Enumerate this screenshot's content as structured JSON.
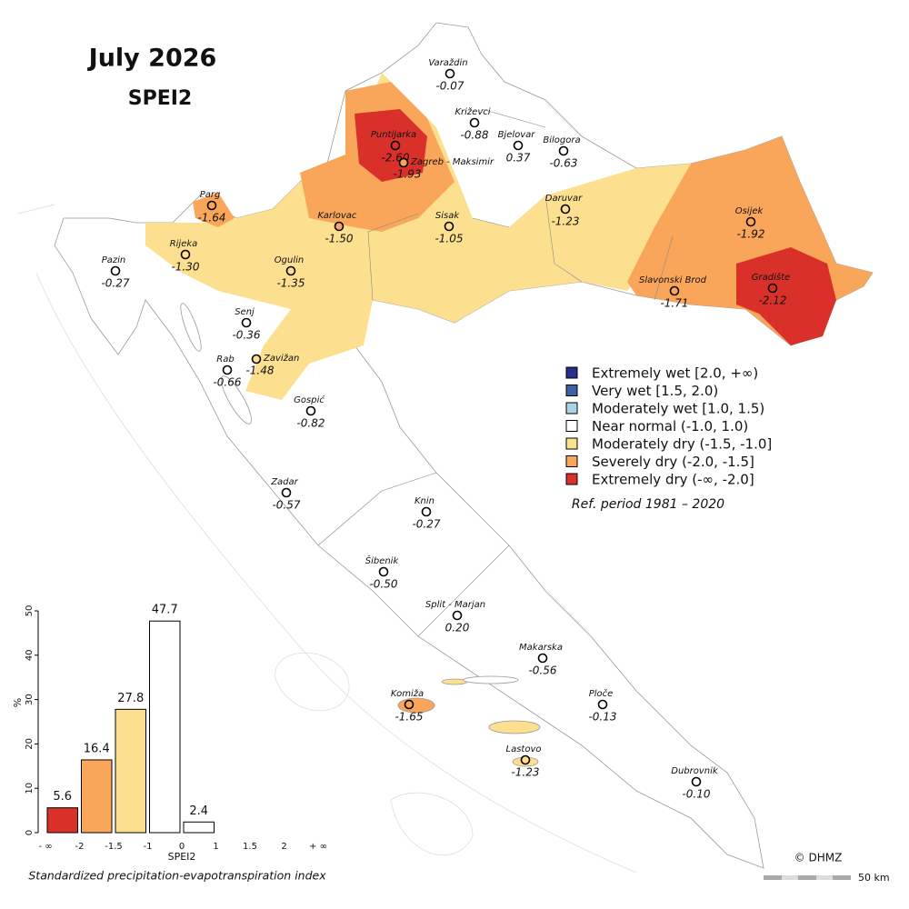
{
  "title": "July 2026",
  "subtitle": "SPEI2",
  "stations": [
    {
      "name": "Varaždin",
      "value": "-0.07",
      "color": "#ffffff"
    },
    {
      "name": "Križevci",
      "value": "-0.88",
      "color": "#ffffff"
    },
    {
      "name": "Bjelovar",
      "value": "0.37",
      "color": "#ffffff"
    },
    {
      "name": "Bilogora",
      "value": "-0.63",
      "color": "#ffffff"
    },
    {
      "name": "Puntijarka",
      "value": "-2.60",
      "color": "#d9302a"
    },
    {
      "name": "Zagreb - Maksimir",
      "value": "-1.93",
      "color": "#f9a65a"
    },
    {
      "name": "Parg",
      "value": "-1.64",
      "color": "#f9a65a"
    },
    {
      "name": "Karlovac",
      "value": "-1.50",
      "color": "#f9a65a"
    },
    {
      "name": "Sisak",
      "value": "-1.05",
      "color": "#fde08f"
    },
    {
      "name": "Daruvar",
      "value": "-1.23",
      "color": "#fde08f"
    },
    {
      "name": "Osijek",
      "value": "-1.92",
      "color": "#f9a65a"
    },
    {
      "name": "Rijeka",
      "value": "-1.30",
      "color": "#fde08f"
    },
    {
      "name": "Pazin",
      "value": "-0.27",
      "color": "#ffffff"
    },
    {
      "name": "Ogulin",
      "value": "-1.35",
      "color": "#fde08f"
    },
    {
      "name": "Slavonski Brod",
      "value": "-1.71",
      "color": "#f9a65a"
    },
    {
      "name": "Gradište",
      "value": "-2.12",
      "color": "#d9302a"
    },
    {
      "name": "Senj",
      "value": "-0.36",
      "color": "#ffffff"
    },
    {
      "name": "Zavižan",
      "value": "-1.48",
      "color": "#fde08f"
    },
    {
      "name": "Rab",
      "value": "-0.66",
      "color": "#ffffff"
    },
    {
      "name": "Gospić",
      "value": "-0.82",
      "color": "#ffffff"
    },
    {
      "name": "Zadar",
      "value": "-0.57",
      "color": "#ffffff"
    },
    {
      "name": "Knin",
      "value": "-0.27",
      "color": "#ffffff"
    },
    {
      "name": "Šibenik",
      "value": "-0.50",
      "color": "#ffffff"
    },
    {
      "name": "Split - Marjan",
      "value": "0.20",
      "color": "#ffffff"
    },
    {
      "name": "Makarska",
      "value": "-0.56",
      "color": "#ffffff"
    },
    {
      "name": "Komiža",
      "value": "-1.65",
      "color": "#f9a65a"
    },
    {
      "name": "Ploče",
      "value": "-0.13",
      "color": "#ffffff"
    },
    {
      "name": "Lastovo",
      "value": "-1.23",
      "color": "#fde08f"
    },
    {
      "name": "Dubrovnik",
      "value": "-0.10",
      "color": "#ffffff"
    }
  ],
  "legend": {
    "items": [
      {
        "label": "Extremely wet [2.0, +∞)",
        "color": "#2b2d8a"
      },
      {
        "label": "Very wet [1.5, 2.0)",
        "color": "#3c5fa8"
      },
      {
        "label": "Moderately wet [1.0, 1.5)",
        "color": "#a9d4e6"
      },
      {
        "label": "Near normal (-1.0, 1.0)",
        "color": "#ffffff"
      },
      {
        "label": "Moderately dry (-1.5, -1.0]",
        "color": "#fde08f"
      },
      {
        "label": "Severely dry (-2.0, -1.5]",
        "color": "#f9a65a"
      },
      {
        "label": "Extremely dry (-∞, -2.0]",
        "color": "#d9302a"
      }
    ],
    "note": "Ref. period 1981 – 2020"
  },
  "chart_data": {
    "type": "bar",
    "bin_labels": [
      "- ∞",
      "-2",
      "-1.5",
      "-1",
      "0",
      "1",
      "1.5",
      "2",
      "+ ∞"
    ],
    "values": [
      5.6,
      16.4,
      27.8,
      47.7,
      2.4,
      0,
      0,
      0
    ],
    "colors": [
      "#d9302a",
      "#f9a65a",
      "#fde08f",
      "#ffffff",
      "#ffffff",
      "#ffffff",
      "#ffffff",
      "#ffffff"
    ],
    "ylim": [
      0,
      50
    ],
    "yticks": [
      0,
      10,
      20,
      30,
      40,
      50
    ],
    "x_label": "SPEI2",
    "y_label": "%",
    "caption": "Standardized precipitation-evapotranspiration index"
  },
  "credit": "© DHMZ",
  "scale_bar": "50 km"
}
